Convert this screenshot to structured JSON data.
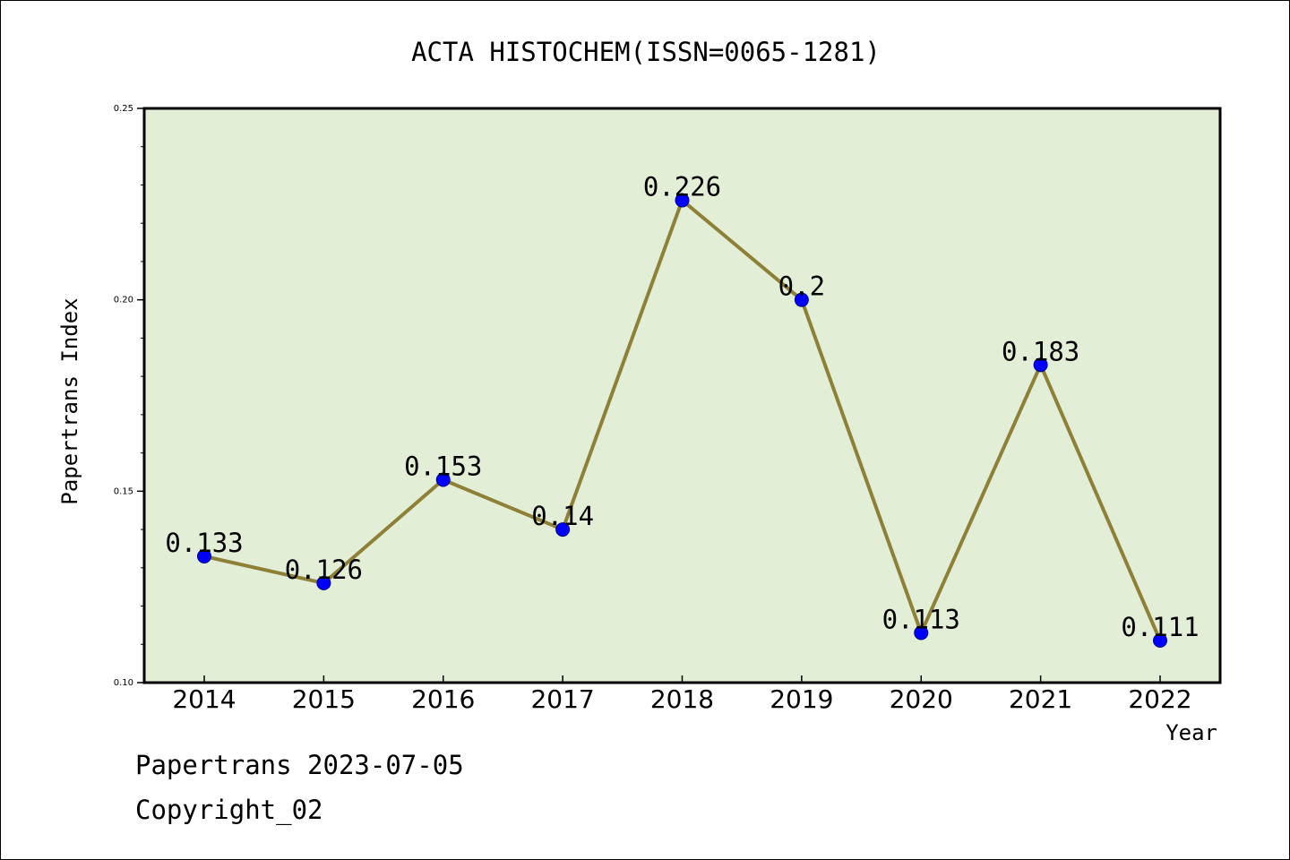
{
  "chart_data": {
    "type": "line",
    "title": "ACTA HISTOCHEM(ISSN=0065-1281)",
    "xlabel": "Year",
    "ylabel": "Papertrans Index",
    "categories": [
      "2014",
      "2015",
      "2016",
      "2017",
      "2018",
      "2019",
      "2020",
      "2021",
      "2022"
    ],
    "values": [
      0.133,
      0.126,
      0.153,
      0.14,
      0.226,
      0.2,
      0.113,
      0.183,
      0.111
    ],
    "data_labels": [
      "0.133",
      "0.126",
      "0.153",
      "0.14",
      "0.226",
      "0.2",
      "0.113",
      "0.183",
      "0.111"
    ],
    "ylim": [
      0.1,
      0.25
    ],
    "yticks": [
      0.1,
      0.15,
      0.2,
      0.25
    ],
    "ytick_labels": [
      "0.10",
      "0.15",
      "0.20",
      "0.25"
    ],
    "grid": false,
    "legend": "none"
  },
  "footer": {
    "line1": "Papertrans 2023-07-05",
    "line2": "Copyright_02"
  },
  "colors": {
    "plot_background": "#e2efd6",
    "line": "#8f8037",
    "marker": "#0000ff",
    "axes": "#000000"
  }
}
